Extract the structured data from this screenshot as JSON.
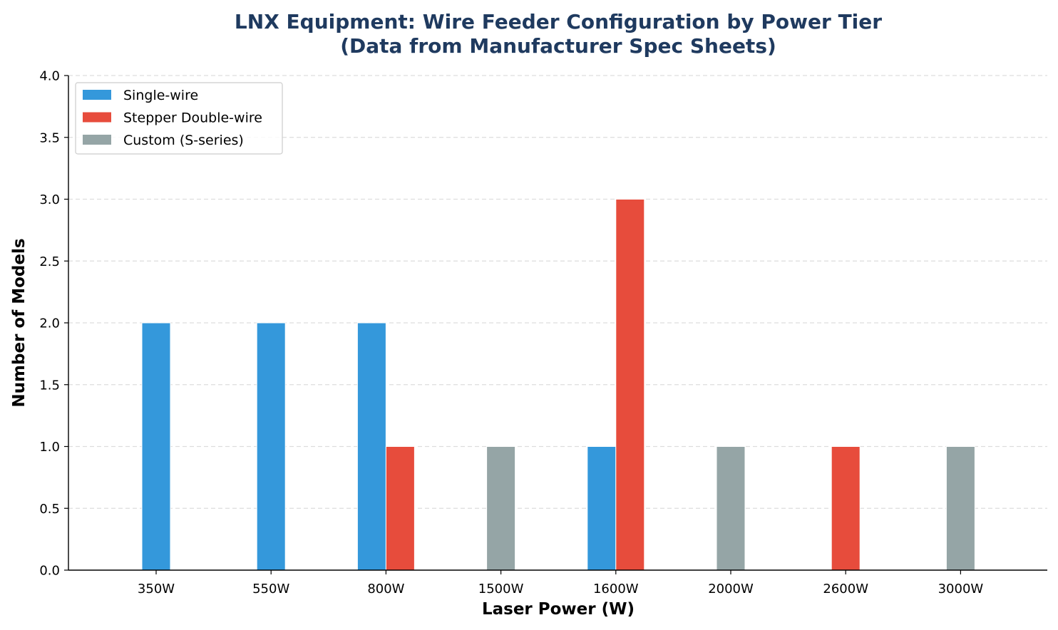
{
  "chart_data": {
    "type": "bar",
    "title": "LNX Equipment: Wire Feeder Configuration by Power Tier",
    "subtitle": "(Data from Manufacturer Spec Sheets)",
    "xlabel": "Laser Power (W)",
    "ylabel": "Number of Models",
    "categories": [
      "350W",
      "550W",
      "800W",
      "1500W",
      "1600W",
      "2000W",
      "2600W",
      "3000W"
    ],
    "ylim": [
      0,
      4.0
    ],
    "yticks": [
      "0.0",
      "0.5",
      "1.0",
      "1.5",
      "2.0",
      "2.5",
      "3.0",
      "3.5",
      "4.0"
    ],
    "grid": "y-dashed",
    "legend_position": "top-left",
    "series": [
      {
        "name": "Single-wire",
        "color": "#3498db",
        "values": [
          2,
          2,
          2,
          0,
          1,
          0,
          0,
          0
        ]
      },
      {
        "name": "Stepper Double-wire",
        "color": "#e74c3c",
        "values": [
          0,
          0,
          1,
          0,
          3,
          0,
          1,
          0
        ]
      },
      {
        "name": "Custom (S-series)",
        "color": "#95a5a6",
        "values": [
          0,
          0,
          0,
          1,
          0,
          1,
          0,
          1
        ]
      }
    ]
  }
}
